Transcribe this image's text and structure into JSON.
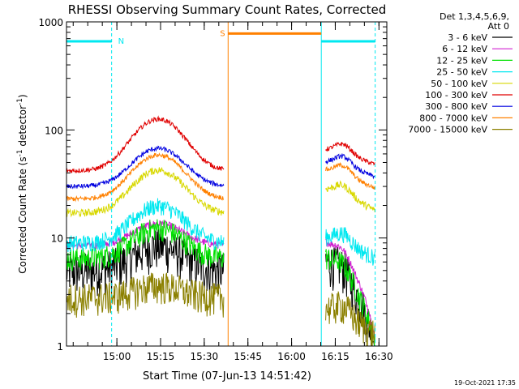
{
  "chart_data": {
    "type": "line",
    "title": "RHESSI Observing Summary Count Rates, Corrected",
    "xlabel": "Start Time (07-Jun-13 14:51:42)",
    "ylabel": "Corrected Count Rate (s",
    "ylabel_sup1": "-1",
    "ylabel_mid": " detector",
    "ylabel_sup2": "-1",
    "ylabel_end": ")",
    "yscale": "log",
    "ylim": [
      1,
      1000
    ],
    "xlim_minutes": [
      -9,
      101
    ],
    "x_ticks": [
      {
        "m": 8.3,
        "label": "15:00"
      },
      {
        "m": 23.3,
        "label": "15:15"
      },
      {
        "m": 38.3,
        "label": "15:30"
      },
      {
        "m": 53.3,
        "label": "15:45"
      },
      {
        "m": 68.3,
        "label": "16:00"
      },
      {
        "m": 83.3,
        "label": "16:15"
      },
      {
        "m": 98.3,
        "label": "16:30"
      }
    ],
    "y_ticks": [
      {
        "v": 1,
        "label": "1"
      },
      {
        "v": 10,
        "label": "10"
      },
      {
        "v": 100,
        "label": "100"
      },
      {
        "v": 1000,
        "label": "1000"
      }
    ],
    "legend_header": [
      "Det 1,3,4,5,6,9,",
      "Att 0"
    ],
    "series": [
      {
        "name": "3 - 6 keV",
        "color": "#000000",
        "base": 5.0,
        "amp": 1.7,
        "noise": 0.45,
        "seg2": 6.0,
        "drop2": 1.0
      },
      {
        "name": "6 - 12 keV",
        "color": "#d020d0",
        "base": 8.5,
        "amp": 1.6,
        "noise": 0.08,
        "seg2": 9.0,
        "drop2": 1.1
      },
      {
        "name": "12 - 25 keV",
        "color": "#00e000",
        "base": 6.5,
        "amp": 1.9,
        "noise": 0.25,
        "seg2": 6.5,
        "drop2": 1.0
      },
      {
        "name": "25 - 50 keV",
        "color": "#00e8f0",
        "base": 9.0,
        "amp": 2.2,
        "noise": 0.18,
        "seg2": 10.0,
        "drop2": 6.5
      },
      {
        "name": "50 - 100 keV",
        "color": "#d8d800",
        "base": 17.0,
        "amp": 2.5,
        "noise": 0.08,
        "seg2": 28.0,
        "drop2": 18.0
      },
      {
        "name": "100 - 300 keV",
        "color": "#e00000",
        "base": 42.0,
        "amp": 3.0,
        "noise": 0.05,
        "seg2": 65.0,
        "drop2": 48.0
      },
      {
        "name": "300 - 800 keV",
        "color": "#0000e0",
        "base": 30.0,
        "amp": 2.25,
        "noise": 0.05,
        "seg2": 50.0,
        "drop2": 37.0
      },
      {
        "name": "800 - 7000 keV",
        "color": "#ff8000",
        "base": 23.0,
        "amp": 2.55,
        "noise": 0.05,
        "seg2": 42.0,
        "drop2": 29.0
      },
      {
        "name": "7000 - 15000 keV",
        "color": "#8b8000",
        "base": 2.8,
        "amp": 1.3,
        "noise": 0.35,
        "seg2": 2.2,
        "drop2": 1.3
      }
    ],
    "data_segments": [
      {
        "start": -9,
        "end": 45
      },
      {
        "start": 80,
        "end": 97
      }
    ],
    "flare_peak_minute": 22.5,
    "flag_bars": [
      {
        "label": "N",
        "color": "#00e8f0",
        "start": -9,
        "end": 6.5,
        "level": 660
      },
      {
        "label": "S",
        "color": "#ff8000",
        "start": 46.5,
        "end": 78.5,
        "level": 780
      },
      {
        "label": "",
        "color": "#00e8f0",
        "start": 78.5,
        "end": 97,
        "level": 660
      }
    ],
    "vertical_markers": [
      {
        "m": 6.5,
        "color": "#00e8f0",
        "style": "dashed"
      },
      {
        "m": 46.5,
        "color": "#ff8000",
        "style": "solid"
      },
      {
        "m": 78.5,
        "color": "#00e8f0",
        "style": "solid"
      },
      {
        "m": 97,
        "color": "#00e8f0",
        "style": "dashed"
      }
    ],
    "timestamp": "19-Oct-2021 17:35"
  }
}
